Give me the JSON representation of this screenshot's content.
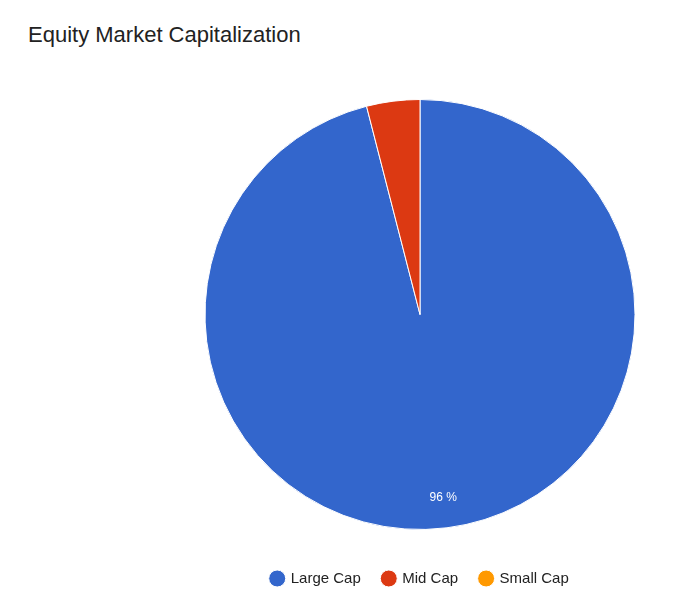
{
  "chart_data": {
    "type": "pie",
    "title": "Equity Market Capitalization",
    "categories": [
      "Large Cap",
      "Mid Cap",
      "Small Cap"
    ],
    "values": [
      96,
      4,
      0
    ],
    "colors": [
      "#3366cc",
      "#dc3912",
      "#ff9900"
    ],
    "data_labels": true,
    "value_labels": [
      "96 %",
      null,
      null
    ],
    "legend": "bottom"
  }
}
